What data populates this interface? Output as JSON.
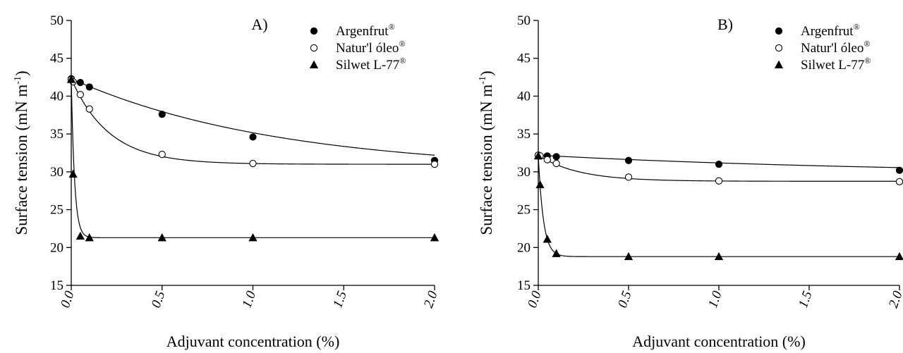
{
  "chart_data": [
    {
      "type": "scatter",
      "title": "A)",
      "xlabel": "Adjuvant concentration (%)",
      "ylabel": "Surface tension (mN m",
      "ylabel_sup": "-1",
      "ylabel_close": ")",
      "xlim": [
        0,
        2
      ],
      "ylim": [
        15,
        50
      ],
      "xticks": [
        "0.0",
        "0.5",
        "1.0",
        "1.5",
        "2.0"
      ],
      "yticks": [
        "15",
        "20",
        "25",
        "30",
        "35",
        "40",
        "45",
        "50"
      ],
      "legend_position": "top-right",
      "series": [
        {
          "name": "Argenfrut",
          "name_sup": "®",
          "marker": "filled-circle",
          "x": [
            0,
            0.05,
            0.1,
            0.5,
            1.0,
            2.0
          ],
          "y": [
            42.3,
            41.8,
            41.2,
            37.6,
            34.6,
            31.5
          ],
          "fit": {
            "model": "exp",
            "a": 30.1,
            "b": 12.2,
            "k": 0.88
          }
        },
        {
          "name": "Natur'l óleo",
          "name_sup": "®",
          "marker": "open-circle",
          "x": [
            0,
            0.01,
            0.05,
            0.1,
            0.5,
            1.0,
            2.0
          ],
          "y": [
            42.2,
            41.9,
            40.2,
            38.3,
            32.3,
            31.1,
            31.0
          ],
          "fit": {
            "model": "exp",
            "a": 31.0,
            "b": 11.3,
            "k": 4.8
          }
        },
        {
          "name": "Silwet L-77",
          "name_sup": "®",
          "marker": "filled-triangle",
          "x": [
            0,
            0.01,
            0.05,
            0.1,
            0.5,
            1.0,
            2.0
          ],
          "y": [
            42.2,
            29.7,
            21.5,
            21.3,
            21.3,
            21.3,
            21.3
          ],
          "fit": {
            "model": "exp",
            "a": 21.3,
            "b": 20.9,
            "k": 55
          }
        }
      ]
    },
    {
      "type": "scatter",
      "title": "B)",
      "xlabel": "Adjuvant concentration (%)",
      "ylabel": "Surface tension (mN m",
      "ylabel_sup": "-1",
      "ylabel_close": ")",
      "xlim": [
        0,
        2
      ],
      "ylim": [
        15,
        50
      ],
      "xticks": [
        "0.0",
        "0.5",
        "1.0",
        "1.5",
        "2.0"
      ],
      "yticks": [
        "15",
        "20",
        "25",
        "30",
        "35",
        "40",
        "45",
        "50"
      ],
      "legend_position": "top-right",
      "series": [
        {
          "name": "Argenfrut",
          "name_sup": "®",
          "marker": "filled-circle",
          "x": [
            0,
            0.05,
            0.1,
            0.5,
            1.0,
            2.0
          ],
          "y": [
            32.2,
            32.1,
            32.0,
            31.5,
            31.0,
            30.2
          ],
          "fit": {
            "model": "exp",
            "a": 29.6,
            "b": 2.6,
            "k": 0.5
          }
        },
        {
          "name": "Natur'l óleo",
          "name_sup": "®",
          "marker": "open-circle",
          "x": [
            0,
            0.01,
            0.05,
            0.1,
            0.5,
            1.0,
            2.0
          ],
          "y": [
            32.2,
            32.1,
            31.6,
            31.1,
            29.3,
            28.8,
            28.7
          ],
          "fit": {
            "model": "exp",
            "a": 28.75,
            "b": 3.45,
            "k": 4.5
          }
        },
        {
          "name": "Silwet L-77",
          "name_sup": "®",
          "marker": "filled-triangle",
          "x": [
            0,
            0.01,
            0.05,
            0.1,
            0.5,
            1.0,
            2.0
          ],
          "y": [
            32.1,
            28.3,
            21.1,
            19.2,
            18.8,
            18.8,
            18.8
          ],
          "fit": {
            "model": "exp",
            "a": 18.8,
            "b": 13.3,
            "k": 35
          }
        }
      ]
    }
  ]
}
